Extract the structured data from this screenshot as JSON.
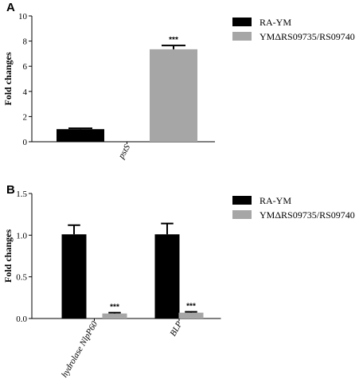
{
  "chart_data": [
    {
      "type": "bar",
      "panel": "A",
      "ylabel": "Fold changes",
      "ylim": [
        0,
        10
      ],
      "yticks": [
        "0",
        "2",
        "4",
        "6",
        "8",
        "10"
      ],
      "categories": [
        "pstS"
      ],
      "series": [
        {
          "name": "RA-YM",
          "values": [
            1.0
          ],
          "errors": [
            0.07
          ],
          "color": "#000000",
          "sig": [
            ""
          ]
        },
        {
          "name": "YMΔRS09735/RS09740",
          "values": [
            7.35
          ],
          "errors": [
            0.3
          ],
          "color": "#a6a6a6",
          "sig": [
            "***"
          ]
        }
      ],
      "legend_position": "top-right",
      "grid": false
    },
    {
      "type": "bar",
      "panel": "B",
      "ylabel": "Fold changes",
      "ylim": [
        0,
        1.5
      ],
      "yticks": [
        "0.0",
        "0.5",
        "1.0",
        "1.5"
      ],
      "categories": [
        "hydrolase NlpP60",
        "BLP"
      ],
      "series": [
        {
          "name": "RA-YM",
          "values": [
            1.01,
            1.01
          ],
          "errors": [
            0.11,
            0.13
          ],
          "color": "#000000",
          "sig": [
            "",
            ""
          ]
        },
        {
          "name": "YMΔRS09735/RS09740",
          "values": [
            0.06,
            0.07
          ],
          "errors": [
            0.01,
            0.01
          ],
          "color": "#a6a6a6",
          "sig": [
            "***",
            "***"
          ]
        }
      ],
      "legend_position": "top-right",
      "grid": false
    }
  ]
}
